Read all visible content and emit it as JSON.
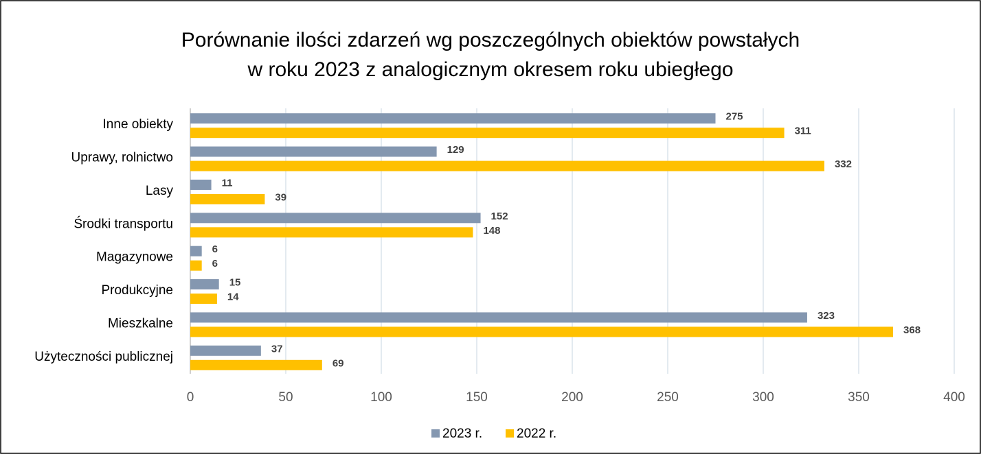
{
  "chart_data": {
    "type": "bar",
    "orientation": "horizontal",
    "title": [
      "Porównanie ilości zdarzeń wg poszczególnych obiektów powstałych",
      "w roku 2023 z analogicznym okresem roku ubiegłego"
    ],
    "categories": [
      "Inne obiekty",
      "Uprawy, rolnictwo",
      "Lasy",
      "Środki transportu",
      "Magazynowe",
      "Produkcyjne",
      "Mieszkalne",
      "Użyteczności publicznej"
    ],
    "series": [
      {
        "name": "2023 r.",
        "color": "#8497b0",
        "values": [
          275,
          129,
          11,
          152,
          6,
          15,
          323,
          37
        ]
      },
      {
        "name": "2022 r.",
        "color": "#ffc000",
        "values": [
          311,
          332,
          39,
          148,
          6,
          14,
          368,
          69
        ]
      }
    ],
    "xlim": [
      0,
      400
    ],
    "xticks": [
      0,
      50,
      100,
      150,
      200,
      250,
      300,
      350,
      400
    ],
    "grid": true,
    "legend": "bottom"
  }
}
